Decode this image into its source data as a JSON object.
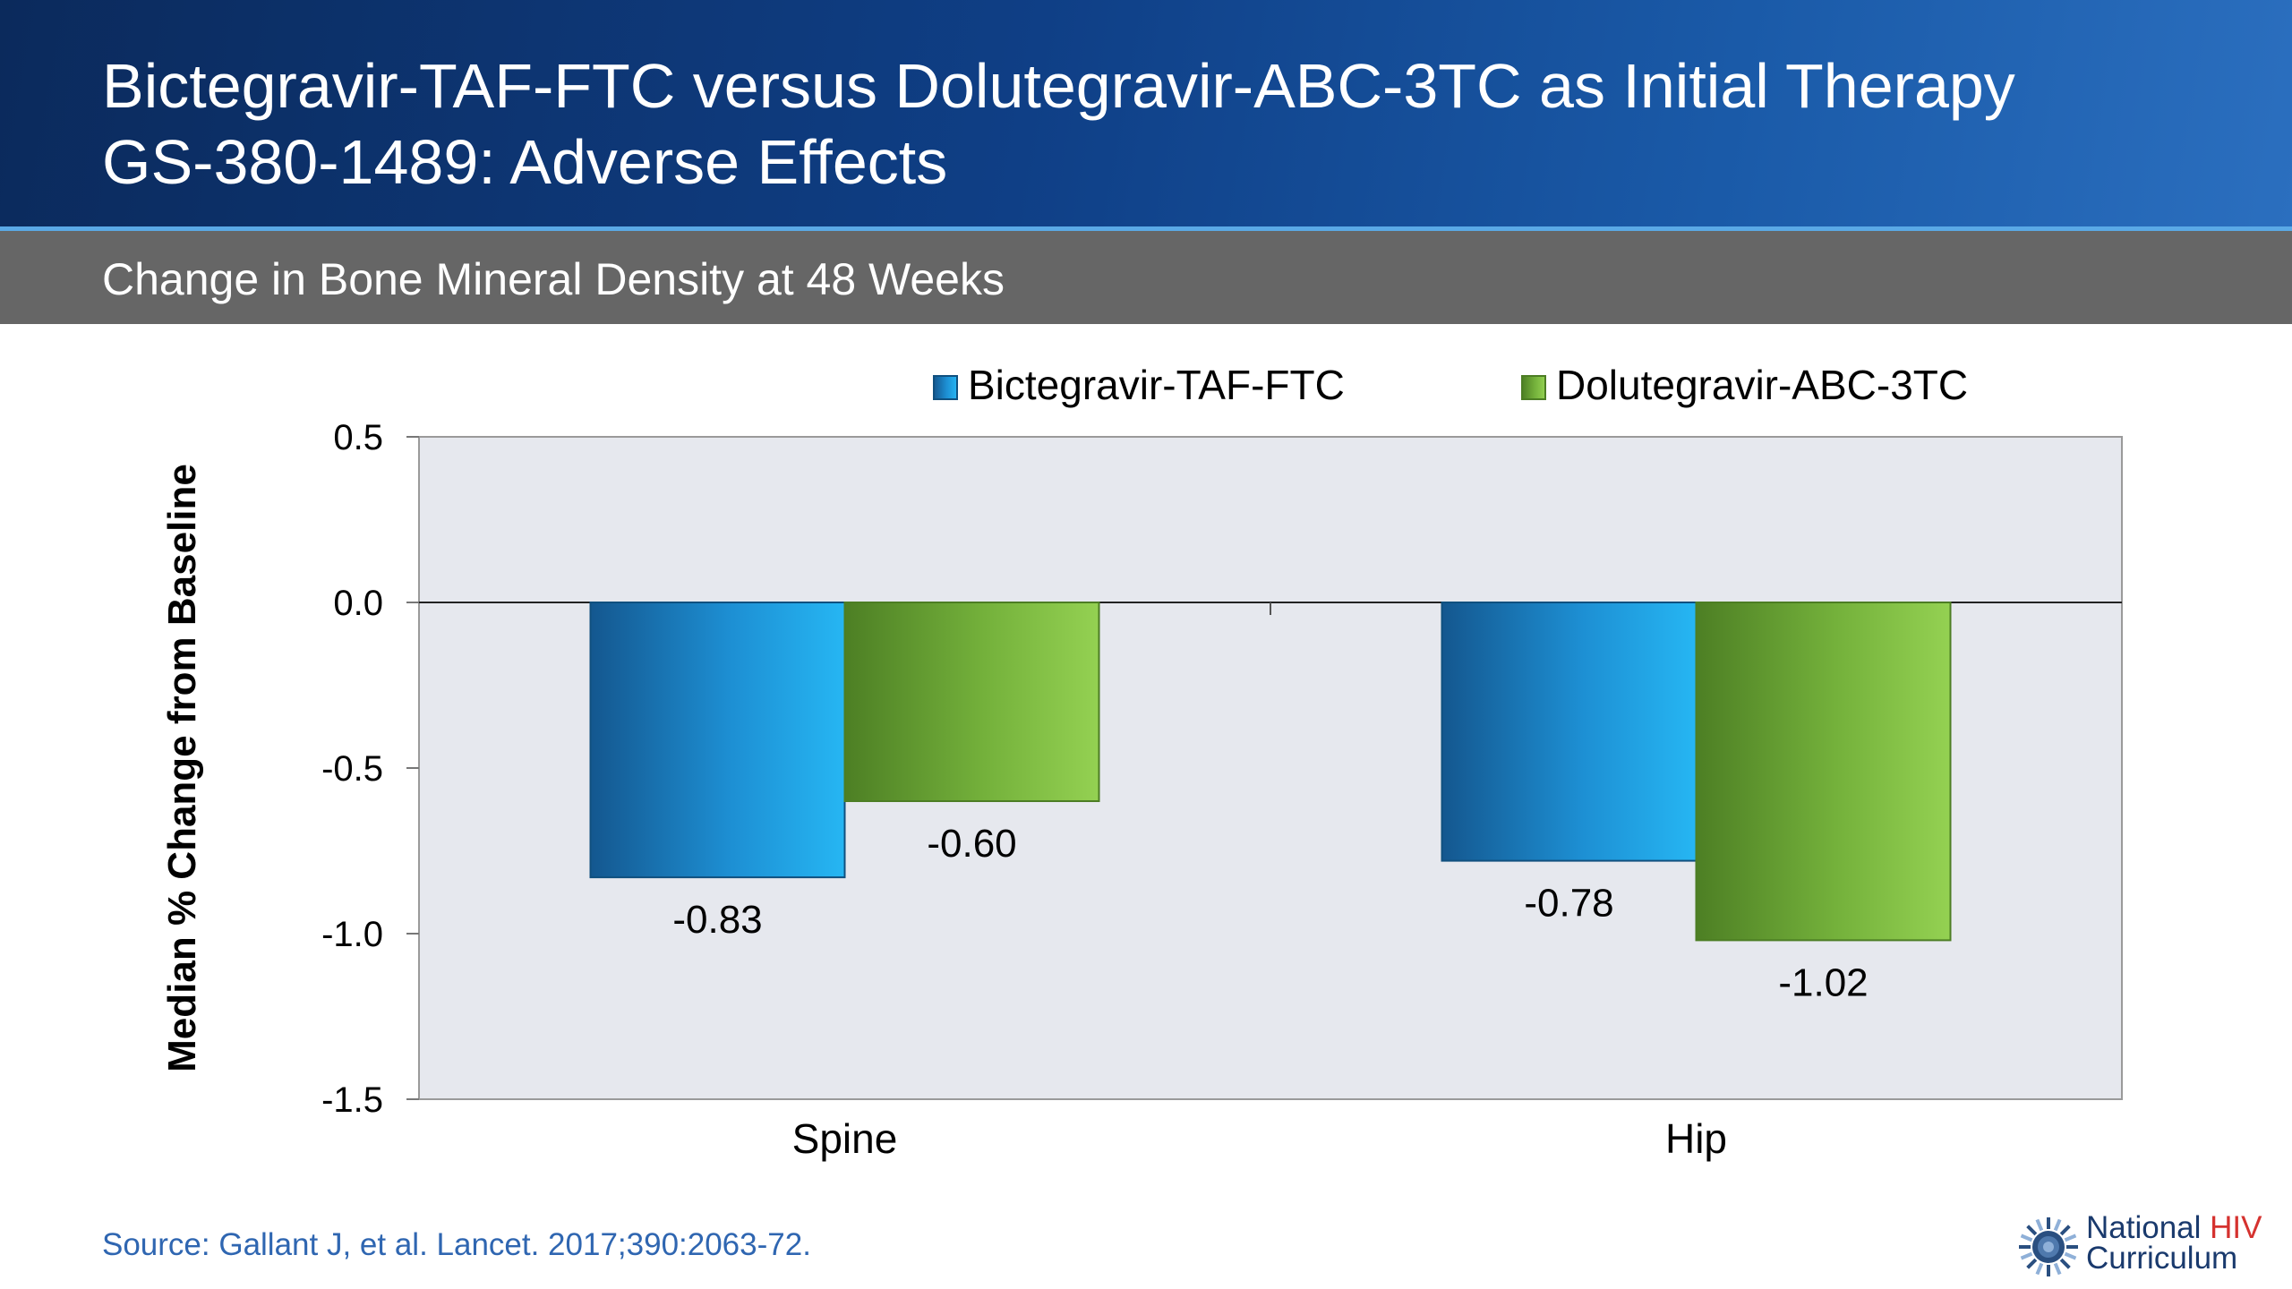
{
  "slide": {
    "title_line1": "Bictegravir-TAF-FTC versus Dolutegravir-ABC-3TC as Initial Therapy",
    "title_line2": "GS-380-1489: Adverse Effects",
    "subtitle": "Change in Bone Mineral Density at 48 Weeks",
    "source": "Source: Gallant J, et al. Lancet. 2017;390:2063-72.",
    "logo_line1_a": "National ",
    "logo_line1_b": "HIV",
    "logo_line2": "Curriculum"
  },
  "colors": {
    "series1": "#1f8fd6",
    "series2": "#7cbd45",
    "plot_bg": "#e6e8ee",
    "header": "#0f3f86",
    "source_text": "#2f66b1",
    "logo_red": "#d5322f"
  },
  "chart_data": {
    "type": "bar",
    "categories": [
      "Spine",
      "Hip"
    ],
    "series": [
      {
        "name": "Bictegravir-TAF-FTC",
        "values": [
          -0.83,
          -0.78
        ],
        "labels": [
          "-0.83",
          "-0.78"
        ]
      },
      {
        "name": "Dolutegravir-ABC-3TC",
        "values": [
          -0.6,
          -1.02
        ],
        "labels": [
          "-0.60",
          "-1.02"
        ]
      }
    ],
    "ylabel": "Median % Change from Baseline",
    "xlabel": "",
    "ylim": [
      -1.5,
      0.5
    ],
    "yticks": [
      0.5,
      0.0,
      -0.5,
      -1.0,
      -1.5
    ],
    "ytick_labels": [
      "0.5",
      "0.0",
      "-0.5",
      "-1.0",
      "-1.5"
    ],
    "legend_position": "top",
    "grid": false
  }
}
